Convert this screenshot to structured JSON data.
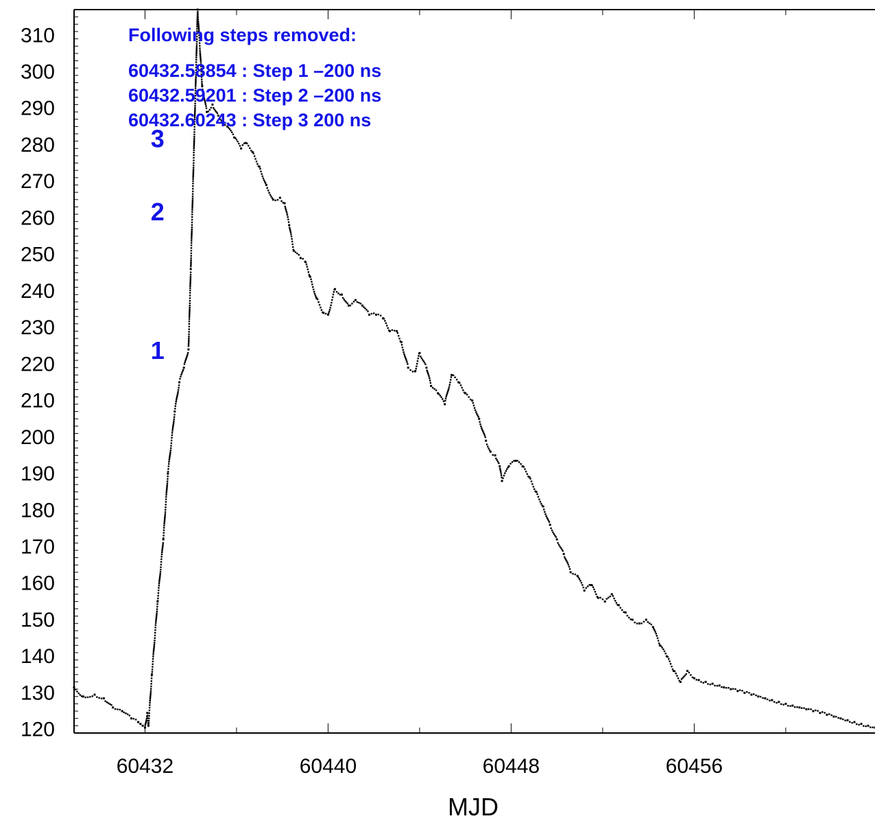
{
  "chart_data": {
    "type": "scatter",
    "xlabel": "MJD",
    "ylabel": "",
    "xlim": [
      60428.9,
      60463.9
    ],
    "ylim": [
      119,
      317
    ],
    "xticks": [
      60432,
      60440,
      60448,
      60456
    ],
    "yticks": [
      120,
      130,
      140,
      150,
      160,
      170,
      180,
      190,
      200,
      210,
      220,
      230,
      240,
      250,
      260,
      270,
      280,
      290,
      300,
      310
    ],
    "series": [
      {
        "color": "#000000",
        "x": [
          60428.9,
          60429.3,
          60429.8,
          60430.2,
          60430.6,
          60431.0,
          60431.4,
          60431.7,
          60431.8,
          60431.9,
          60432.0,
          60432.1,
          60432.15,
          60432.3,
          60432.55,
          60432.8,
          60433.0,
          60433.3,
          60433.5,
          60433.7,
          60433.9,
          60434.0,
          60434.3,
          60434.5,
          60434.7,
          60434.95,
          60435.2,
          60435.4,
          60435.6,
          60435.9,
          60436.2,
          60436.4,
          60436.7,
          60437.0,
          60437.3,
          60437.6,
          60437.9,
          60438.1,
          60438.3,
          60438.5,
          60438.8,
          60439.0,
          60439.2,
          60439.5,
          60439.8,
          60440.0,
          60440.3,
          60440.6,
          60440.9,
          60441.2,
          60441.5,
          60441.8,
          60442.1,
          60442.4,
          60442.7,
          60443.0,
          60443.2,
          60443.5,
          60443.8,
          60444.0,
          60444.3,
          60444.5,
          60444.8,
          60445.1,
          60445.4,
          60445.7,
          60446.0,
          60446.3,
          60446.6,
          60446.9,
          60447.1,
          60447.3,
          60447.5,
          60447.6,
          60447.9,
          60448.2,
          60448.5,
          60448.8,
          60449.1,
          60449.4,
          60449.7,
          60450.0,
          60450.3,
          60450.6,
          60450.9,
          60451.2,
          60451.5,
          60451.8,
          60452.1,
          60452.4,
          60452.7,
          60453.0,
          60453.3,
          60453.6,
          60453.9,
          60454.2,
          60454.5,
          60454.8,
          60455.1,
          60455.4,
          60455.7,
          60456.0,
          60456.2,
          60456.5,
          60456.8,
          60457.1,
          60457.3,
          60457.6,
          60457.9,
          60458.2,
          60458.5,
          60458.8,
          60459.1,
          60459.4,
          60459.7,
          60460.0,
          60460.3,
          60460.6,
          60460.9,
          60461.2,
          60461.5,
          60461.8,
          60462.1,
          60462.4,
          60462.7,
          60463.0,
          60463.3,
          60463.6,
          60463.9
        ],
        "y": [
          131.5,
          129,
          129.5,
          128.5,
          126,
          125,
          123,
          122,
          121.5,
          121,
          120.5,
          124.5,
          121,
          135,
          155,
          172,
          190,
          207,
          215,
          219,
          224,
          246,
          317,
          296,
          289,
          291,
          288,
          286,
          285,
          282,
          279,
          280.5,
          278,
          274,
          269,
          265,
          265.5,
          264,
          258,
          251,
          249,
          248,
          244,
          238,
          234,
          233.5,
          240.5,
          239,
          236,
          237.5,
          236,
          233.5,
          233.5,
          232.5,
          229,
          229,
          226,
          219,
          218,
          223,
          219,
          214,
          212,
          209,
          217,
          215,
          212,
          210,
          205,
          199,
          196,
          195,
          192,
          188,
          192,
          193.5,
          192,
          189,
          185,
          181,
          176,
          172,
          168,
          163,
          162,
          158,
          159.5,
          156,
          155,
          157,
          154,
          152,
          150,
          149,
          150,
          148,
          143,
          140,
          136,
          133,
          136,
          134,
          133.5,
          133,
          132.5,
          132,
          131.5,
          131,
          130.5,
          130,
          129.5,
          129,
          128.5,
          128,
          127.5,
          127,
          126.5,
          126,
          125.5,
          125,
          124.5,
          124,
          123.5,
          123,
          122.5,
          122,
          121.5,
          121,
          120.5
        ]
      }
    ],
    "annotation": {
      "title": "Following steps removed:",
      "lines": [
        "60432.58854 : Step 1 –200 ns",
        "60432.59201 : Step 2 –200 ns",
        "60432.60243 : Step 3 200 ns"
      ],
      "color": "#1414e6"
    },
    "step_markers": [
      {
        "label": "1",
        "x": 60432.55,
        "y": 224
      },
      {
        "label": "2",
        "x": 60432.55,
        "y": 262
      },
      {
        "label": "3",
        "x": 60432.55,
        "y": 282
      }
    ]
  }
}
